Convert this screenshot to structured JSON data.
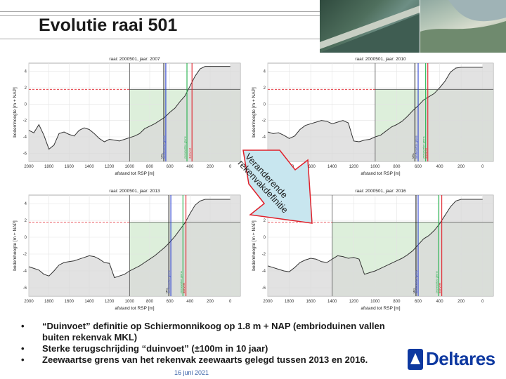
{
  "slide": {
    "title": "Evolutie raai 501",
    "date": "16 juni 2021",
    "logo_text": "Deltares",
    "arrow_label": "Veranderende rekenvakdefinitie",
    "bullets": [
      "“Duinvoet” definitie op Schiermonnikoog op 1.8 m + NAP (embrioduinen vallen buiten rekenvak MKL)",
      "Sterke terugschrijding “duinvoet” (±100m in 10 jaar)",
      "Zeewaartse grens van het rekenvak zeewaarts gelegd tussen 2013 en 2016."
    ],
    "bullet_symbol": "•"
  },
  "colors": {
    "accent_blue": "#0d38a0",
    "green_zone": "#cfe8cc",
    "profile_fill": "#d8d8d8",
    "arrow_fill": "#c8e6ef",
    "arrow_stroke": "#e0202a"
  },
  "chart_data": [
    {
      "type": "area",
      "title": "raai: 2000501, jaar: 2007",
      "xlabel": "afstand tot RSP [m]",
      "ylabel": "bodemhoogte [m + NAP]",
      "xlim": [
        2000,
        -100
      ],
      "ylim": [
        -7,
        5
      ],
      "xticks": [
        2000,
        1800,
        1600,
        1400,
        1200,
        1000,
        800,
        600,
        400,
        200,
        0
      ],
      "yticks": [
        4,
        2,
        0,
        -2,
        -4,
        -6
      ],
      "grid": true,
      "x": [
        2000,
        1950,
        1900,
        1850,
        1800,
        1750,
        1700,
        1650,
        1600,
        1550,
        1500,
        1450,
        1400,
        1350,
        1300,
        1250,
        1200,
        1150,
        1100,
        1050,
        1000,
        950,
        900,
        850,
        800,
        750,
        700,
        650,
        600,
        550,
        500,
        450,
        400,
        350,
        300,
        250,
        200,
        150,
        100,
        50,
        0
      ],
      "y": [
        -3.2,
        -3.5,
        -2.5,
        -3.8,
        -5.5,
        -5.0,
        -3.6,
        -3.4,
        -3.7,
        -3.9,
        -3.2,
        -2.9,
        -3.1,
        -3.6,
        -4.2,
        -4.6,
        -4.3,
        -4.4,
        -4.5,
        -4.3,
        -4.1,
        -3.9,
        -3.6,
        -3.0,
        -2.7,
        -2.4,
        -2.0,
        -1.6,
        -1.0,
        -0.5,
        0.3,
        1.0,
        2.2,
        3.4,
        4.3,
        4.6,
        4.6,
        4.6,
        4.6,
        4.6,
        4.6
      ],
      "zone_from_x": 1000,
      "zone_level": 1.8,
      "vlines": [
        {
          "x": 660,
          "color": "#222222",
          "label": "MKL"
        },
        {
          "x": 640,
          "color": "#2a3fd0",
          "label": "landwaartse grens"
        },
        {
          "x": 430,
          "color": "#22b04a",
          "label": "zeewaartse grens"
        },
        {
          "x": 380,
          "color": "#e0202a",
          "label": "duinvoet"
        }
      ]
    },
    {
      "type": "area",
      "title": "raai: 2000501, jaar: 2010",
      "xlabel": "afstand tot RSP [m]",
      "ylabel": "bodemhoogte [m + NAP]",
      "xlim": [
        2000,
        -100
      ],
      "ylim": [
        -7,
        5
      ],
      "xticks": [
        2000,
        1800,
        1600,
        1400,
        1200,
        1000,
        800,
        600,
        400,
        200,
        0
      ],
      "yticks": [
        4,
        2,
        0,
        -2,
        -4,
        -6
      ],
      "grid": true,
      "x": [
        2000,
        1950,
        1900,
        1850,
        1800,
        1750,
        1700,
        1650,
        1600,
        1550,
        1500,
        1450,
        1400,
        1350,
        1300,
        1250,
        1200,
        1150,
        1100,
        1050,
        1000,
        950,
        900,
        850,
        800,
        750,
        700,
        650,
        600,
        550,
        500,
        450,
        400,
        350,
        300,
        250,
        200,
        150,
        100,
        50,
        0
      ],
      "y": [
        -3.4,
        -3.6,
        -3.5,
        -3.8,
        -4.2,
        -3.9,
        -3.1,
        -2.6,
        -2.4,
        -2.2,
        -2.0,
        -2.1,
        -2.4,
        -2.2,
        -2.0,
        -2.3,
        -4.5,
        -4.6,
        -4.4,
        -4.3,
        -4.0,
        -3.8,
        -3.3,
        -2.8,
        -2.5,
        -2.1,
        -1.5,
        -0.8,
        -0.2,
        0.5,
        0.9,
        1.3,
        2.0,
        2.8,
        3.9,
        4.4,
        4.5,
        4.5,
        4.5,
        4.5,
        4.5
      ],
      "zone_from_x": 1000,
      "zone_level": 1.8,
      "vlines": [
        {
          "x": 630,
          "color": "#222222",
          "label": "MKL"
        },
        {
          "x": 600,
          "color": "#2a3fd0",
          "label": "landwaartse grens"
        },
        {
          "x": 530,
          "color": "#22b04a",
          "label": "zeewaartse grens"
        },
        {
          "x": 510,
          "color": "#e0202a",
          "label": "duinvoet"
        }
      ]
    },
    {
      "type": "area",
      "title": "raai: 2000501, jaar: 2013",
      "xlabel": "afstand tot RSP [m]",
      "ylabel": "bodemhoogte [m + NAP]",
      "xlim": [
        2000,
        -100
      ],
      "ylim": [
        -7,
        5
      ],
      "xticks": [
        2000,
        1800,
        1600,
        1400,
        1200,
        1000,
        800,
        600,
        400,
        200,
        0
      ],
      "yticks": [
        4,
        2,
        0,
        -2,
        -4,
        -6
      ],
      "grid": true,
      "x": [
        2000,
        1950,
        1900,
        1850,
        1800,
        1750,
        1700,
        1650,
        1600,
        1550,
        1500,
        1450,
        1400,
        1350,
        1300,
        1250,
        1200,
        1150,
        1100,
        1050,
        1000,
        950,
        900,
        850,
        800,
        750,
        700,
        650,
        600,
        550,
        500,
        450,
        400,
        350,
        300,
        250,
        200,
        150,
        100,
        50,
        0
      ],
      "y": [
        -3.5,
        -3.7,
        -3.9,
        -4.4,
        -4.6,
        -4.0,
        -3.3,
        -3.0,
        -2.9,
        -2.8,
        -2.6,
        -2.4,
        -2.2,
        -2.3,
        -2.6,
        -3.0,
        -3.1,
        -4.8,
        -4.6,
        -4.4,
        -4.0,
        -3.7,
        -3.4,
        -3.0,
        -2.6,
        -2.2,
        -1.7,
        -1.2,
        -0.6,
        0.1,
        0.9,
        1.7,
        2.8,
        3.8,
        4.3,
        4.5,
        4.5,
        4.5,
        4.5,
        4.5,
        4.5
      ],
      "zone_from_x": 1000,
      "zone_level": 1.8,
      "vlines": [
        {
          "x": 610,
          "color": "#222222",
          "label": "MKL"
        },
        {
          "x": 590,
          "color": "#2a3fd0",
          "label": "landwaartse grens"
        },
        {
          "x": 470,
          "color": "#22b04a",
          "label": "zeewaartse grens"
        },
        {
          "x": 440,
          "color": "#e0202a",
          "label": "duinvoet"
        }
      ]
    },
    {
      "type": "area",
      "title": "raai: 2000501, jaar: 2016",
      "xlabel": "afstand tot RSP [m]",
      "ylabel": "bodemhoogte [m + NAP]",
      "xlim": [
        2000,
        -100
      ],
      "ylim": [
        -7,
        5
      ],
      "xticks": [
        2000,
        1800,
        1600,
        1400,
        1200,
        1000,
        800,
        600,
        400,
        200,
        0
      ],
      "yticks": [
        4,
        2,
        0,
        -2,
        -4,
        -6
      ],
      "grid": true,
      "x": [
        2000,
        1950,
        1900,
        1850,
        1800,
        1750,
        1700,
        1650,
        1600,
        1550,
        1500,
        1450,
        1400,
        1350,
        1300,
        1250,
        1200,
        1150,
        1100,
        1050,
        1000,
        950,
        900,
        850,
        800,
        750,
        700,
        650,
        600,
        550,
        500,
        450,
        400,
        350,
        300,
        250,
        200,
        150,
        100,
        50,
        0
      ],
      "y": [
        -3.4,
        -3.6,
        -3.8,
        -4.0,
        -4.1,
        -3.6,
        -3.0,
        -2.7,
        -2.5,
        -2.6,
        -2.9,
        -3.0,
        -2.6,
        -2.2,
        -2.3,
        -2.5,
        -2.4,
        -2.6,
        -4.4,
        -4.2,
        -4.0,
        -3.7,
        -3.4,
        -3.1,
        -2.8,
        -2.5,
        -2.1,
        -1.6,
        -0.9,
        -0.2,
        0.2,
        0.8,
        1.6,
        2.6,
        3.6,
        4.3,
        4.5,
        4.5,
        4.5,
        4.5,
        4.5
      ],
      "zone_from_x": 1400,
      "zone_level": 1.8,
      "vlines": [
        {
          "x": 620,
          "color": "#222222",
          "label": "MKL"
        },
        {
          "x": 600,
          "color": "#2a3fd0",
          "label": "landwaartse grens"
        },
        {
          "x": 410,
          "color": "#22b04a",
          "label": "zeewaartse grens"
        },
        {
          "x": 380,
          "color": "#e0202a",
          "label": "duinvoet"
        }
      ]
    }
  ]
}
